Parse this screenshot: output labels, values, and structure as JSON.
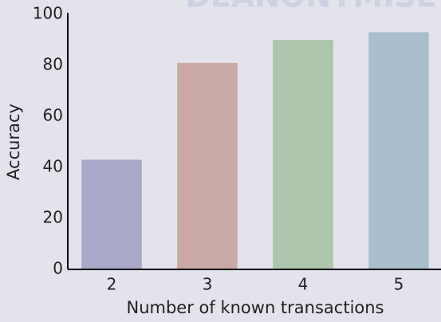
{
  "chart_data": {
    "type": "bar",
    "title": "DEANONYMISE",
    "x_label": "Number of known transactions",
    "y_label": "Accuracy",
    "categories": [
      "2",
      "3",
      "4",
      "5"
    ],
    "values": [
      43,
      81,
      90,
      93
    ],
    "colors": [
      "#aaa8c9",
      "#c8a9a5",
      "#adc4ad",
      "#a9bfcd"
    ],
    "ylim": [
      0,
      100
    ],
    "yticks": [
      0,
      20,
      40,
      60,
      80,
      100
    ]
  }
}
